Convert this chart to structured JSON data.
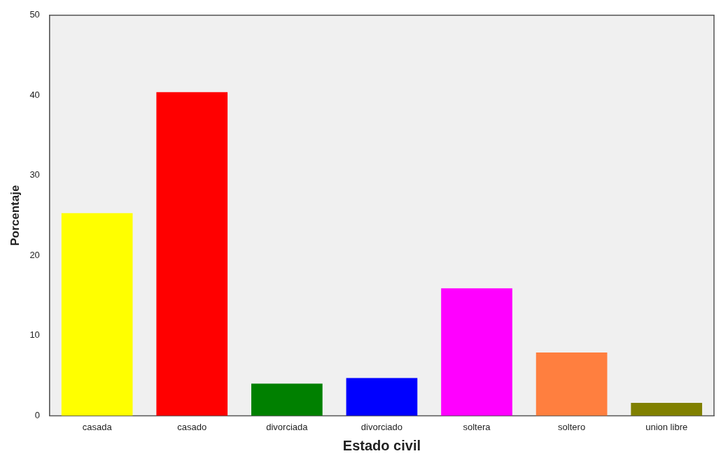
{
  "chart_data": {
    "type": "bar",
    "xlabel": "Estado civil",
    "ylabel": "Porcentaje",
    "categories": [
      "casada",
      "casado",
      "divorciada",
      "divorciado",
      "soltera",
      "soltero",
      "union libre"
    ],
    "values": [
      25.3,
      40.4,
      4.0,
      4.7,
      15.9,
      7.9,
      1.6
    ],
    "colors": [
      "#ffff00",
      "#ff0000",
      "#008000",
      "#0000ff",
      "#ff00ff",
      "#ff7f3f",
      "#808000"
    ],
    "ylim": [
      0,
      50
    ],
    "yticks": [
      0,
      10,
      20,
      30,
      40,
      50
    ],
    "grid": false,
    "legend": false
  }
}
